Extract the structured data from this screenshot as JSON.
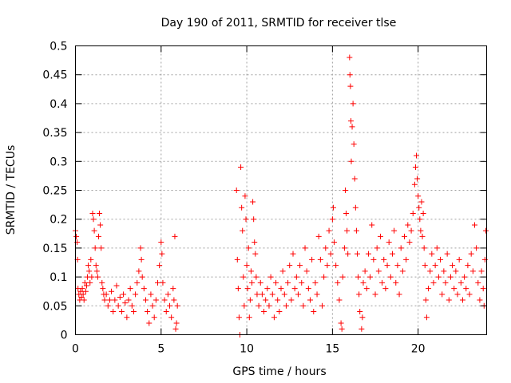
{
  "chart_data": {
    "type": "scatter",
    "title": "Day 190 of 2011, SRMTID for receiver tlse",
    "xlabel": "GPS time / hours",
    "ylabel": "SRMTID / TECUs",
    "xlim": [
      0,
      24
    ],
    "ylim": [
      0,
      0.5
    ],
    "xticks": [
      0,
      5,
      10,
      15,
      20
    ],
    "xtick_labels": [
      "0",
      "5",
      "10",
      "15",
      "20"
    ],
    "yticks": [
      0,
      0.05,
      0.1,
      0.15,
      0.2,
      0.25,
      0.3,
      0.35,
      0.4,
      0.45,
      0.5
    ],
    "ytick_labels": [
      "0",
      "0.05",
      "0.1",
      "0.15",
      "0.2",
      "0.25",
      "0.3",
      "0.35",
      "0.4",
      "0.45",
      "0.5"
    ],
    "grid": true,
    "marker": "plus",
    "color": "#ff0000",
    "series": [
      {
        "name": "SRMTID",
        "points": [
          [
            0.0,
            0.18
          ],
          [
            0.05,
            0.17
          ],
          [
            0.1,
            0.16
          ],
          [
            0.12,
            0.13
          ],
          [
            0.15,
            0.08
          ],
          [
            0.2,
            0.07
          ],
          [
            0.25,
            0.06
          ],
          [
            0.3,
            0.075
          ],
          [
            0.35,
            0.065
          ],
          [
            0.4,
            0.08
          ],
          [
            0.45,
            0.07
          ],
          [
            0.5,
            0.06
          ],
          [
            0.55,
            0.09
          ],
          [
            0.6,
            0.075
          ],
          [
            0.65,
            0.085
          ],
          [
            0.7,
            0.1
          ],
          [
            0.75,
            0.12
          ],
          [
            0.8,
            0.11
          ],
          [
            0.85,
            0.09
          ],
          [
            0.9,
            0.13
          ],
          [
            0.95,
            0.1
          ],
          [
            1.0,
            0.21
          ],
          [
            1.05,
            0.2
          ],
          [
            1.1,
            0.18
          ],
          [
            1.15,
            0.15
          ],
          [
            1.2,
            0.12
          ],
          [
            1.25,
            0.11
          ],
          [
            1.3,
            0.1
          ],
          [
            1.35,
            0.17
          ],
          [
            1.4,
            0.21
          ],
          [
            1.45,
            0.19
          ],
          [
            1.5,
            0.15
          ],
          [
            1.55,
            0.09
          ],
          [
            1.6,
            0.08
          ],
          [
            1.65,
            0.07
          ],
          [
            1.7,
            0.06
          ],
          [
            1.8,
            0.07
          ],
          [
            1.9,
            0.05
          ],
          [
            2.0,
            0.06
          ],
          [
            2.1,
            0.075
          ],
          [
            2.2,
            0.04
          ],
          [
            2.3,
            0.06
          ],
          [
            2.4,
            0.085
          ],
          [
            2.5,
            0.05
          ],
          [
            2.6,
            0.065
          ],
          [
            2.7,
            0.04
          ],
          [
            2.8,
            0.07
          ],
          [
            2.9,
            0.055
          ],
          [
            3.0,
            0.03
          ],
          [
            3.1,
            0.06
          ],
          [
            3.2,
            0.08
          ],
          [
            3.3,
            0.05
          ],
          [
            3.4,
            0.04
          ],
          [
            3.5,
            0.07
          ],
          [
            3.6,
            0.09
          ],
          [
            3.7,
            0.11
          ],
          [
            3.8,
            0.15
          ],
          [
            3.85,
            0.13
          ],
          [
            3.9,
            0.1
          ],
          [
            4.0,
            0.08
          ],
          [
            4.1,
            0.06
          ],
          [
            4.2,
            0.04
          ],
          [
            4.3,
            0.02
          ],
          [
            4.4,
            0.07
          ],
          [
            4.5,
            0.05
          ],
          [
            4.6,
            0.03
          ],
          [
            4.7,
            0.06
          ],
          [
            4.8,
            0.09
          ],
          [
            4.9,
            0.12
          ],
          [
            5.0,
            0.16
          ],
          [
            5.05,
            0.14
          ],
          [
            5.1,
            0.09
          ],
          [
            5.2,
            0.06
          ],
          [
            5.3,
            0.04
          ],
          [
            5.4,
            0.07
          ],
          [
            5.5,
            0.05
          ],
          [
            5.6,
            0.03
          ],
          [
            5.7,
            0.08
          ],
          [
            5.75,
            0.06
          ],
          [
            5.8,
            0.17
          ],
          [
            5.85,
            0.01
          ],
          [
            5.9,
            0.02
          ],
          [
            5.95,
            0.05
          ],
          [
            9.4,
            0.25
          ],
          [
            9.45,
            0.13
          ],
          [
            9.5,
            0.08
          ],
          [
            9.55,
            0.03
          ],
          [
            9.6,
            0.0
          ],
          [
            9.65,
            0.29
          ],
          [
            9.7,
            0.22
          ],
          [
            9.75,
            0.18
          ],
          [
            9.8,
            0.1
          ],
          [
            9.85,
            0.05
          ],
          [
            9.9,
            0.24
          ],
          [
            9.95,
            0.2
          ],
          [
            10.0,
            0.12
          ],
          [
            10.05,
            0.08
          ],
          [
            10.1,
            0.15
          ],
          [
            10.15,
            0.03
          ],
          [
            10.2,
            0.06
          ],
          [
            10.25,
            0.11
          ],
          [
            10.3,
            0.09
          ],
          [
            10.35,
            0.23
          ],
          [
            10.4,
            0.2
          ],
          [
            10.45,
            0.16
          ],
          [
            10.5,
            0.14
          ],
          [
            10.55,
            0.1
          ],
          [
            10.6,
            0.07
          ],
          [
            10.7,
            0.05
          ],
          [
            10.8,
            0.09
          ],
          [
            10.9,
            0.07
          ],
          [
            11.0,
            0.04
          ],
          [
            11.1,
            0.06
          ],
          [
            11.2,
            0.08
          ],
          [
            11.3,
            0.05
          ],
          [
            11.4,
            0.1
          ],
          [
            11.5,
            0.07
          ],
          [
            11.6,
            0.03
          ],
          [
            11.7,
            0.09
          ],
          [
            11.8,
            0.06
          ],
          [
            11.9,
            0.04
          ],
          [
            12.0,
            0.08
          ],
          [
            12.1,
            0.11
          ],
          [
            12.2,
            0.07
          ],
          [
            12.3,
            0.05
          ],
          [
            12.4,
            0.09
          ],
          [
            12.5,
            0.12
          ],
          [
            12.6,
            0.06
          ],
          [
            12.7,
            0.14
          ],
          [
            12.8,
            0.08
          ],
          [
            12.9,
            0.1
          ],
          [
            13.0,
            0.07
          ],
          [
            13.1,
            0.12
          ],
          [
            13.2,
            0.09
          ],
          [
            13.3,
            0.05
          ],
          [
            13.4,
            0.15
          ],
          [
            13.5,
            0.11
          ],
          [
            13.6,
            0.08
          ],
          [
            13.7,
            0.06
          ],
          [
            13.8,
            0.13
          ],
          [
            13.9,
            0.04
          ],
          [
            14.0,
            0.09
          ],
          [
            14.1,
            0.07
          ],
          [
            14.2,
            0.17
          ],
          [
            14.3,
            0.13
          ],
          [
            14.4,
            0.05
          ],
          [
            14.5,
            0.1
          ],
          [
            14.6,
            0.15
          ],
          [
            14.7,
            0.12
          ],
          [
            14.8,
            0.18
          ],
          [
            14.9,
            0.14
          ],
          [
            15.0,
            0.2
          ],
          [
            15.05,
            0.22
          ],
          [
            15.1,
            0.16
          ],
          [
            15.2,
            0.12
          ],
          [
            15.3,
            0.09
          ],
          [
            15.4,
            0.06
          ],
          [
            15.5,
            0.02
          ],
          [
            15.55,
            0.01
          ],
          [
            15.6,
            0.1
          ],
          [
            15.7,
            0.15
          ],
          [
            15.75,
            0.25
          ],
          [
            15.8,
            0.21
          ],
          [
            15.85,
            0.18
          ],
          [
            15.9,
            0.14
          ],
          [
            16.0,
            0.48
          ],
          [
            16.02,
            0.45
          ],
          [
            16.05,
            0.43
          ],
          [
            16.08,
            0.37
          ],
          [
            16.1,
            0.3
          ],
          [
            16.15,
            0.36
          ],
          [
            16.2,
            0.4
          ],
          [
            16.25,
            0.33
          ],
          [
            16.3,
            0.27
          ],
          [
            16.35,
            0.22
          ],
          [
            16.4,
            0.18
          ],
          [
            16.45,
            0.14
          ],
          [
            16.5,
            0.1
          ],
          [
            16.55,
            0.07
          ],
          [
            16.6,
            0.04
          ],
          [
            16.7,
            0.01
          ],
          [
            16.75,
            0.03
          ],
          [
            16.8,
            0.09
          ],
          [
            16.9,
            0.11
          ],
          [
            17.0,
            0.08
          ],
          [
            17.1,
            0.14
          ],
          [
            17.2,
            0.1
          ],
          [
            17.3,
            0.19
          ],
          [
            17.4,
            0.13
          ],
          [
            17.5,
            0.07
          ],
          [
            17.6,
            0.15
          ],
          [
            17.7,
            0.11
          ],
          [
            17.8,
            0.17
          ],
          [
            17.9,
            0.09
          ],
          [
            18.0,
            0.13
          ],
          [
            18.1,
            0.08
          ],
          [
            18.2,
            0.12
          ],
          [
            18.3,
            0.16
          ],
          [
            18.4,
            0.1
          ],
          [
            18.5,
            0.14
          ],
          [
            18.6,
            0.18
          ],
          [
            18.7,
            0.09
          ],
          [
            18.8,
            0.12
          ],
          [
            18.9,
            0.07
          ],
          [
            19.0,
            0.15
          ],
          [
            19.1,
            0.11
          ],
          [
            19.2,
            0.17
          ],
          [
            19.3,
            0.13
          ],
          [
            19.4,
            0.19
          ],
          [
            19.5,
            0.16
          ],
          [
            19.6,
            0.18
          ],
          [
            19.7,
            0.21
          ],
          [
            19.8,
            0.26
          ],
          [
            19.85,
            0.29
          ],
          [
            19.9,
            0.31
          ],
          [
            19.95,
            0.27
          ],
          [
            20.0,
            0.24
          ],
          [
            20.05,
            0.22
          ],
          [
            20.1,
            0.2
          ],
          [
            20.15,
            0.18
          ],
          [
            20.2,
            0.23
          ],
          [
            20.25,
            0.17
          ],
          [
            20.3,
            0.21
          ],
          [
            20.35,
            0.15
          ],
          [
            20.4,
            0.12
          ],
          [
            20.45,
            0.06
          ],
          [
            20.5,
            0.03
          ],
          [
            20.6,
            0.08
          ],
          [
            20.7,
            0.11
          ],
          [
            20.8,
            0.14
          ],
          [
            20.9,
            0.09
          ],
          [
            21.0,
            0.12
          ],
          [
            21.1,
            0.15
          ],
          [
            21.2,
            0.1
          ],
          [
            21.3,
            0.13
          ],
          [
            21.4,
            0.07
          ],
          [
            21.5,
            0.11
          ],
          [
            21.6,
            0.09
          ],
          [
            21.7,
            0.14
          ],
          [
            21.8,
            0.06
          ],
          [
            21.9,
            0.1
          ],
          [
            22.0,
            0.12
          ],
          [
            22.1,
            0.08
          ],
          [
            22.2,
            0.11
          ],
          [
            22.3,
            0.07
          ],
          [
            22.4,
            0.13
          ],
          [
            22.5,
            0.09
          ],
          [
            22.6,
            0.06
          ],
          [
            22.7,
            0.1
          ],
          [
            22.8,
            0.08
          ],
          [
            22.9,
            0.12
          ],
          [
            23.0,
            0.07
          ],
          [
            23.1,
            0.14
          ],
          [
            23.2,
            0.11
          ],
          [
            23.3,
            0.19
          ],
          [
            23.4,
            0.15
          ],
          [
            23.5,
            0.09
          ],
          [
            23.6,
            0.06
          ],
          [
            23.7,
            0.11
          ],
          [
            23.8,
            0.08
          ],
          [
            23.85,
            0.05
          ],
          [
            23.9,
            0.13
          ],
          [
            23.95,
            0.18
          ]
        ]
      }
    ]
  }
}
